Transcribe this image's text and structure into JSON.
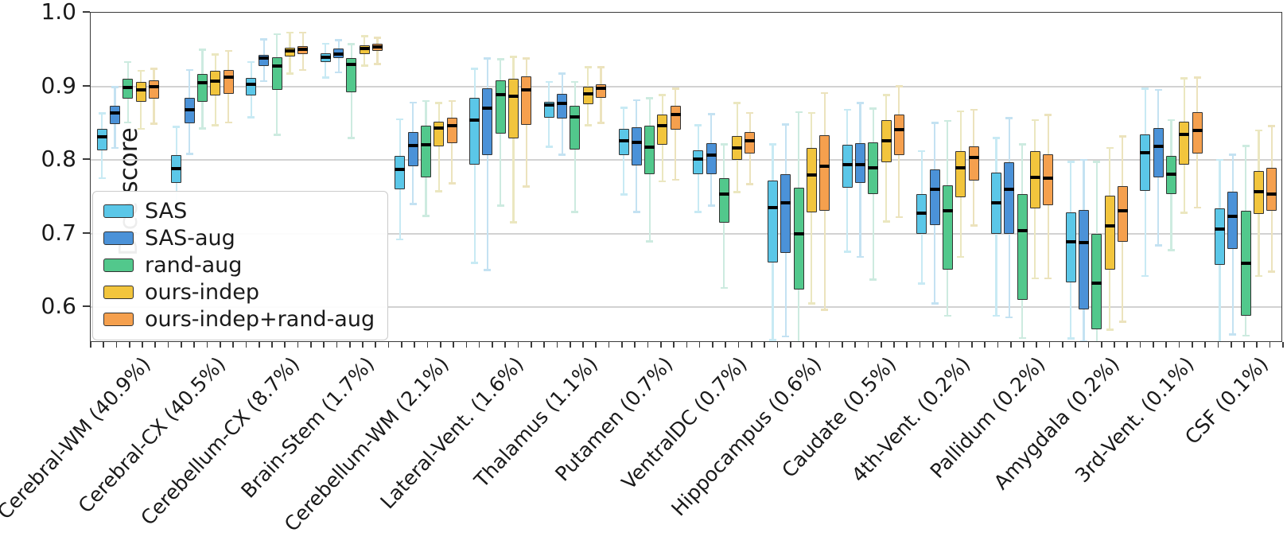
{
  "chart_data": {
    "type": "boxplot",
    "title": "",
    "xlabel": "",
    "ylabel": "Dice score",
    "ylim": [
      0.551,
      1.0
    ],
    "yticks": [
      1.0,
      0.9,
      0.8,
      0.7,
      0.6
    ],
    "grid": true,
    "legend_position": "lower left",
    "box_stats_format": [
      "whisker_low",
      "q1",
      "median",
      "q3",
      "whisker_high"
    ],
    "categories": [
      "Cerebral-WM (40.9%)",
      "Cerebral-CX (40.5%)",
      "Cerebellum-CX (8.7%)",
      "Brain-Stem (1.7%)",
      "Cerebellum-WM (2.1%)",
      "Lateral-Vent. (1.6%)",
      "Thalamus (1.1%)",
      "Putamen (0.7%)",
      "VentralDC (0.7%)",
      "Hippocampus (0.6%)",
      "Caudate (0.5%)",
      "4th-Vent. (0.2%)",
      "Pallidum (0.2%)",
      "Amygdala (0.2%)",
      "3rd-Vent. (0.1%)",
      "CSF (0.1%)"
    ],
    "series": [
      {
        "name": "SAS",
        "color": "#5bc7e8",
        "whisker_color": "#c8eaf4",
        "boxes": [
          [
            0.775,
            0.813,
            0.831,
            0.842,
            0.863
          ],
          [
            0.73,
            0.769,
            0.788,
            0.807,
            0.845
          ],
          [
            0.858,
            0.888,
            0.903,
            0.911,
            0.933
          ],
          [
            0.912,
            0.933,
            0.94,
            0.945,
            0.958
          ],
          [
            0.692,
            0.76,
            0.787,
            0.805,
            0.855
          ],
          [
            0.66,
            0.794,
            0.854,
            0.884,
            0.924
          ],
          [
            0.818,
            0.857,
            0.875,
            0.879,
            0.906
          ],
          [
            0.753,
            0.807,
            0.826,
            0.842,
            0.871
          ],
          [
            0.729,
            0.781,
            0.801,
            0.813,
            0.847
          ],
          [
            0.555,
            0.661,
            0.735,
            0.772,
            0.821
          ],
          [
            0.675,
            0.762,
            0.794,
            0.821,
            0.868
          ],
          [
            0.632,
            0.699,
            0.728,
            0.753,
            0.812
          ],
          [
            0.588,
            0.699,
            0.742,
            0.783,
            0.83
          ],
          [
            0.557,
            0.634,
            0.689,
            0.729,
            0.797
          ],
          [
            0.642,
            0.758,
            0.81,
            0.835,
            0.897
          ],
          [
            0.552,
            0.657,
            0.706,
            0.734,
            0.8
          ]
        ]
      },
      {
        "name": "SAS-aug",
        "color": "#4b92d8",
        "whisker_color": "#c4e2f2",
        "boxes": [
          [
            0.816,
            0.849,
            0.864,
            0.874,
            0.899
          ],
          [
            0.808,
            0.85,
            0.868,
            0.884,
            0.922
          ],
          [
            0.907,
            0.928,
            0.938,
            0.943,
            0.964
          ],
          [
            0.919,
            0.938,
            0.944,
            0.951,
            0.963
          ],
          [
            0.74,
            0.791,
            0.82,
            0.838,
            0.878
          ],
          [
            0.65,
            0.807,
            0.87,
            0.897,
            0.938
          ],
          [
            0.807,
            0.856,
            0.877,
            0.89,
            0.917
          ],
          [
            0.729,
            0.792,
            0.824,
            0.844,
            0.881
          ],
          [
            0.738,
            0.781,
            0.807,
            0.823,
            0.862
          ],
          [
            0.56,
            0.673,
            0.742,
            0.781,
            0.848
          ],
          [
            0.668,
            0.769,
            0.794,
            0.823,
            0.877
          ],
          [
            0.605,
            0.711,
            0.76,
            0.787,
            0.85
          ],
          [
            0.586,
            0.699,
            0.76,
            0.797,
            0.857
          ],
          [
            0.553,
            0.597,
            0.688,
            0.732,
            0.8
          ],
          [
            0.684,
            0.776,
            0.818,
            0.843,
            0.895
          ],
          [
            0.563,
            0.679,
            0.723,
            0.757,
            0.807
          ]
        ]
      },
      {
        "name": "rand-aug",
        "color": "#52c88c",
        "whisker_color": "#cdebe0",
        "boxes": [
          [
            0.851,
            0.883,
            0.898,
            0.91,
            0.933
          ],
          [
            0.843,
            0.879,
            0.905,
            0.917,
            0.95
          ],
          [
            0.834,
            0.895,
            0.928,
            0.939,
            0.971
          ],
          [
            0.83,
            0.892,
            0.93,
            0.938,
            0.957
          ],
          [
            0.724,
            0.776,
            0.821,
            0.846,
            0.88
          ],
          [
            0.738,
            0.836,
            0.889,
            0.908,
            0.937
          ],
          [
            0.729,
            0.814,
            0.858,
            0.874,
            0.906
          ],
          [
            0.689,
            0.781,
            0.817,
            0.846,
            0.884
          ],
          [
            0.626,
            0.715,
            0.753,
            0.775,
            0.821
          ],
          [
            0.551,
            0.624,
            0.7,
            0.762,
            0.865
          ],
          [
            0.637,
            0.753,
            0.789,
            0.824,
            0.87
          ],
          [
            0.588,
            0.651,
            0.731,
            0.765,
            0.853
          ],
          [
            0.558,
            0.61,
            0.704,
            0.753,
            0.821
          ],
          [
            0.548,
            0.57,
            0.632,
            0.699,
            0.797
          ],
          [
            0.677,
            0.754,
            0.781,
            0.805,
            0.854
          ],
          [
            0.561,
            0.588,
            0.66,
            0.731,
            0.819
          ]
        ]
      },
      {
        "name": "ours-indep",
        "color": "#f2c53d",
        "whisker_color": "#ebe7c0",
        "boxes": [
          [
            0.842,
            0.879,
            0.895,
            0.906,
            0.921
          ],
          [
            0.847,
            0.888,
            0.907,
            0.921,
            0.943
          ],
          [
            0.917,
            0.94,
            0.948,
            0.952,
            0.973
          ],
          [
            0.928,
            0.944,
            0.951,
            0.956,
            0.968
          ],
          [
            0.757,
            0.818,
            0.843,
            0.852,
            0.877
          ],
          [
            0.715,
            0.829,
            0.886,
            0.91,
            0.94
          ],
          [
            0.847,
            0.876,
            0.89,
            0.899,
            0.926
          ],
          [
            0.771,
            0.821,
            0.847,
            0.862,
            0.888
          ],
          [
            0.756,
            0.8,
            0.816,
            0.832,
            0.877
          ],
          [
            0.605,
            0.729,
            0.78,
            0.816,
            0.864
          ],
          [
            0.716,
            0.797,
            0.826,
            0.854,
            0.888
          ],
          [
            0.668,
            0.749,
            0.789,
            0.812,
            0.866
          ],
          [
            0.639,
            0.734,
            0.776,
            0.812,
            0.854
          ],
          [
            0.569,
            0.651,
            0.71,
            0.751,
            0.816
          ],
          [
            0.728,
            0.794,
            0.835,
            0.852,
            0.911
          ],
          [
            0.642,
            0.726,
            0.757,
            0.785,
            0.84
          ]
        ]
      },
      {
        "name": "ours-indep+rand-aug",
        "color": "#f5a04e",
        "whisker_color": "#ece3bd",
        "boxes": [
          [
            0.849,
            0.883,
            0.9,
            0.908,
            0.924
          ],
          [
            0.851,
            0.89,
            0.912,
            0.922,
            0.948
          ],
          [
            0.922,
            0.944,
            0.95,
            0.955,
            0.973
          ],
          [
            0.93,
            0.948,
            0.954,
            0.958,
            0.966
          ],
          [
            0.768,
            0.823,
            0.847,
            0.857,
            0.88
          ],
          [
            0.764,
            0.848,
            0.895,
            0.913,
            0.938
          ],
          [
            0.85,
            0.884,
            0.897,
            0.903,
            0.926
          ],
          [
            0.773,
            0.841,
            0.862,
            0.873,
            0.897
          ],
          [
            0.767,
            0.809,
            0.826,
            0.838,
            0.864
          ],
          [
            0.596,
            0.731,
            0.791,
            0.834,
            0.891
          ],
          [
            0.722,
            0.807,
            0.841,
            0.862,
            0.9
          ],
          [
            0.711,
            0.772,
            0.803,
            0.818,
            0.868
          ],
          [
            0.639,
            0.738,
            0.775,
            0.808,
            0.861
          ],
          [
            0.58,
            0.689,
            0.731,
            0.764,
            0.832
          ],
          [
            0.735,
            0.809,
            0.84,
            0.865,
            0.912
          ],
          [
            0.648,
            0.731,
            0.754,
            0.789,
            0.846
          ]
        ]
      }
    ]
  }
}
